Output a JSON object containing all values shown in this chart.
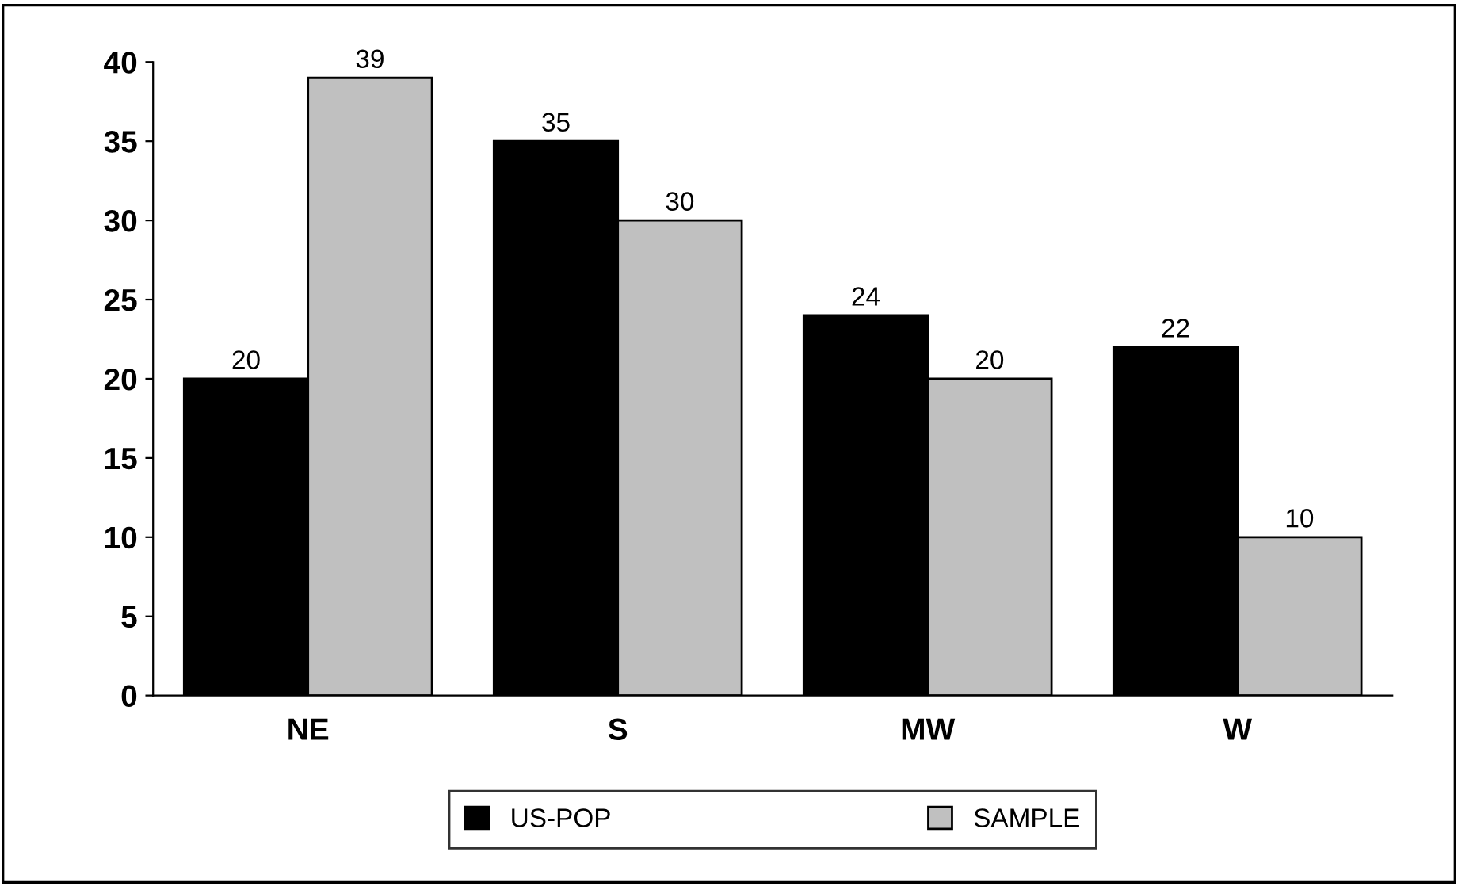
{
  "chart_data": {
    "type": "bar",
    "categories": [
      "NE",
      "S",
      "MW",
      "W"
    ],
    "series": [
      {
        "name": "US-POP",
        "color": "#000000",
        "values": [
          20,
          35,
          24,
          22
        ]
      },
      {
        "name": "SAMPLE",
        "color": "#c0c0c0",
        "values": [
          39,
          30,
          20,
          10
        ]
      }
    ],
    "ylim": [
      0,
      40
    ],
    "yticks": [
      0,
      5,
      10,
      15,
      20,
      25,
      30,
      35,
      40
    ],
    "data_labels": true,
    "grid": false,
    "legend": "bottom"
  }
}
